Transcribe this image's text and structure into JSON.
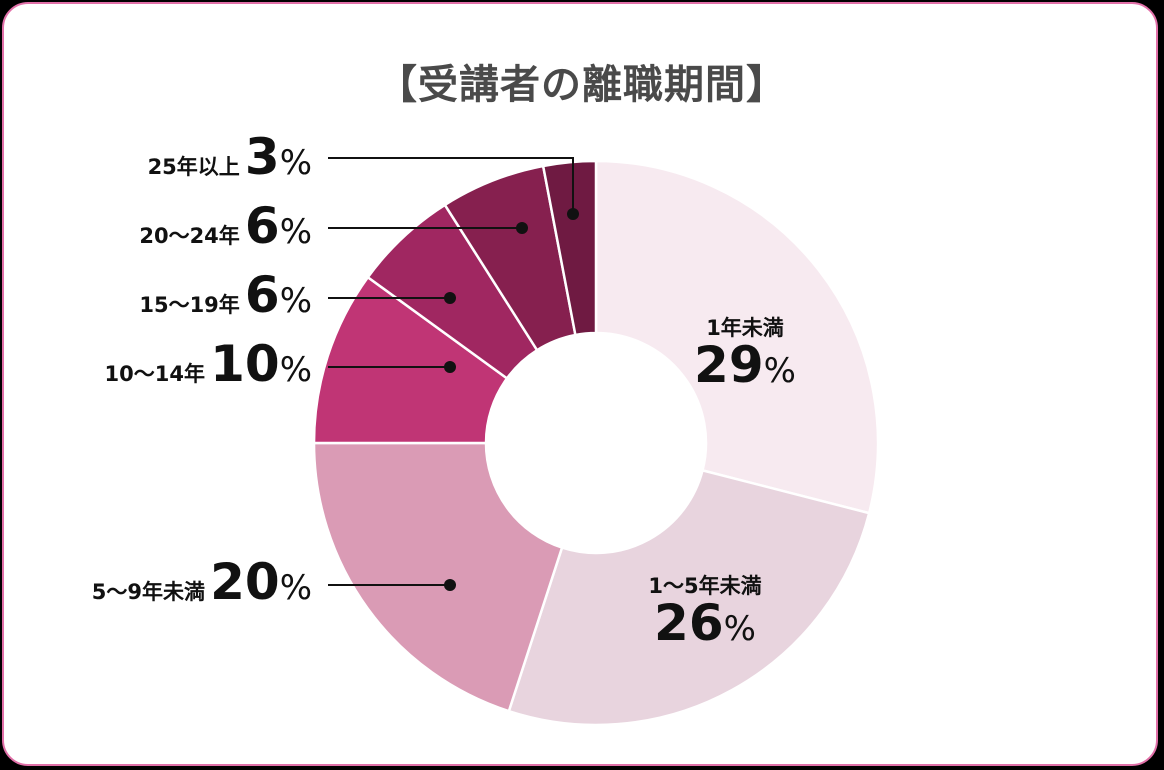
{
  "title": "【受講者の離職期間】",
  "chart_data": {
    "type": "pie",
    "subtype": "donut",
    "title": "【受講者の離職期間】",
    "categories": [
      "1年未満",
      "1〜5年未満",
      "5〜9年未満",
      "10〜14年",
      "15〜19年",
      "20〜24年",
      "25年以上"
    ],
    "values": [
      29,
      26,
      20,
      10,
      6,
      6,
      3
    ],
    "unit": "%",
    "colors": [
      "#f7eaf0",
      "#e8d4de",
      "#da9bb5",
      "#c03575",
      "#a02761",
      "#86204f",
      "#6f1a42"
    ],
    "start_angle": "top, clockwise",
    "legend": "inline labels with leader lines"
  },
  "labels": [
    {
      "cat": "1年未満",
      "num": "29",
      "pct": "%"
    },
    {
      "cat": "1〜5年未満",
      "num": "26",
      "pct": "%"
    },
    {
      "cat": "5〜9年未満",
      "num": "20",
      "pct": "%"
    },
    {
      "cat": "10〜14年",
      "num": "10",
      "pct": "%"
    },
    {
      "cat": "15〜19年",
      "num": "6",
      "pct": "%"
    },
    {
      "cat": "20〜24年",
      "num": "6",
      "pct": "%"
    },
    {
      "cat": "25年以上",
      "num": "3",
      "pct": "%"
    }
  ],
  "colors": {
    "border": "#e170a8",
    "title": "#4a4a4a",
    "text": "#111111"
  }
}
